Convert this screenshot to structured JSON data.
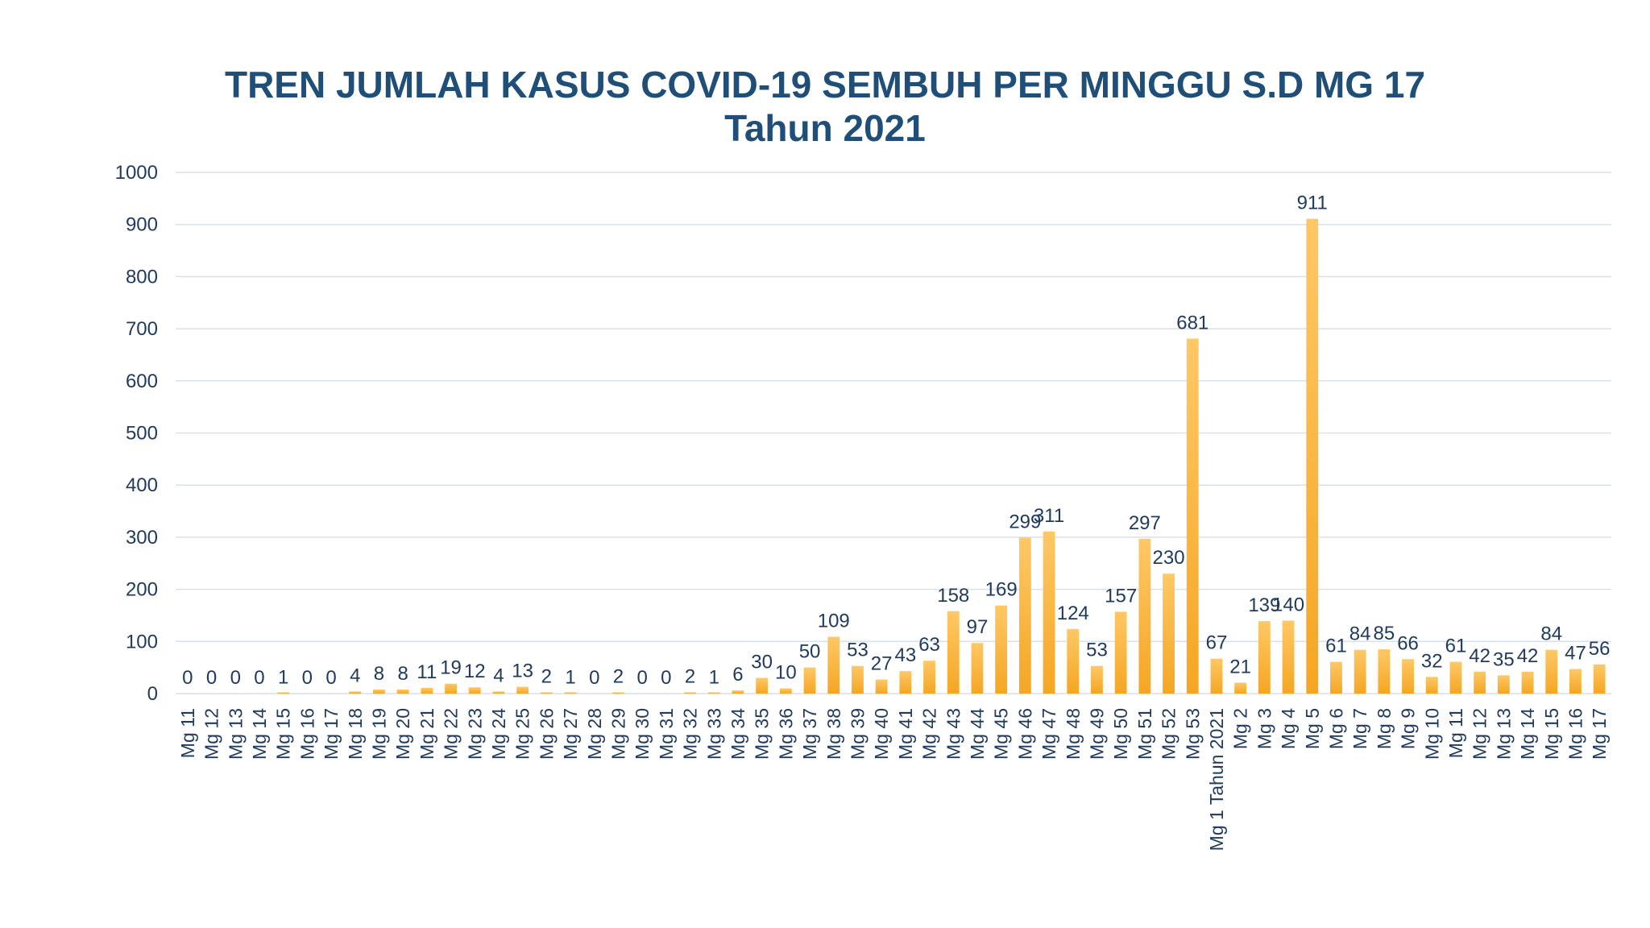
{
  "chart_data": {
    "type": "bar",
    "title": "TREN JUMLAH KASUS COVID-19 SEMBUH PER MINGGU S.D MG 17",
    "subtitle": "Tahun 2021",
    "xlabel": "",
    "ylabel": "",
    "ylim": [
      0,
      1000
    ],
    "yticks": [
      0,
      100,
      200,
      300,
      400,
      500,
      600,
      700,
      800,
      900,
      1000
    ],
    "grid": true,
    "bar_color": "#f5a623",
    "bar_color_light": "#ffc866",
    "text_color": "#1f3a5f",
    "title_color": "#1f4e79",
    "categories": [
      "Mg 11",
      "Mg 12",
      "Mg 13",
      "Mg 14",
      "Mg 15",
      "Mg 16",
      "Mg 17",
      "Mg 18",
      "Mg 19",
      "Mg 20",
      "Mg 21",
      "Mg 22",
      "Mg 23",
      "Mg 24",
      "Mg 25",
      "Mg 26",
      "Mg 27",
      "Mg 28",
      "Mg 29",
      "Mg 30",
      "Mg 31",
      "Mg 32",
      "Mg 33",
      "Mg 34",
      "Mg 35",
      "Mg 36",
      "Mg 37",
      "Mg 38",
      "Mg 39",
      "Mg 40",
      "Mg 41",
      "Mg 42",
      "Mg 43",
      "Mg 44",
      "Mg 45",
      "Mg 46",
      "Mg 47",
      "Mg 48",
      "Mg 49",
      "Mg 50",
      "Mg 51",
      "Mg 52",
      "Mg 53",
      "Mg 1 Tahun 2021",
      "Mg 2",
      "Mg 3",
      "Mg 4",
      "Mg 5",
      "Mg 6",
      "Mg 7",
      "Mg 8",
      "Mg 9",
      "Mg 10",
      "Mg 11",
      "Mg 12",
      "Mg 13",
      "Mg 14",
      "Mg 15",
      "Mg 16",
      "Mg 17"
    ],
    "values": [
      0,
      0,
      0,
      0,
      1,
      0,
      0,
      4,
      8,
      8,
      11,
      19,
      12,
      4,
      13,
      2,
      1,
      0,
      2,
      0,
      0,
      2,
      1,
      6,
      30,
      10,
      50,
      109,
      53,
      27,
      43,
      63,
      158,
      97,
      169,
      299,
      311,
      124,
      53,
      157,
      297,
      230,
      681,
      67,
      21,
      139,
      140,
      911,
      61,
      84,
      85,
      66,
      32,
      61,
      42,
      35,
      42,
      84,
      47,
      56
    ]
  }
}
